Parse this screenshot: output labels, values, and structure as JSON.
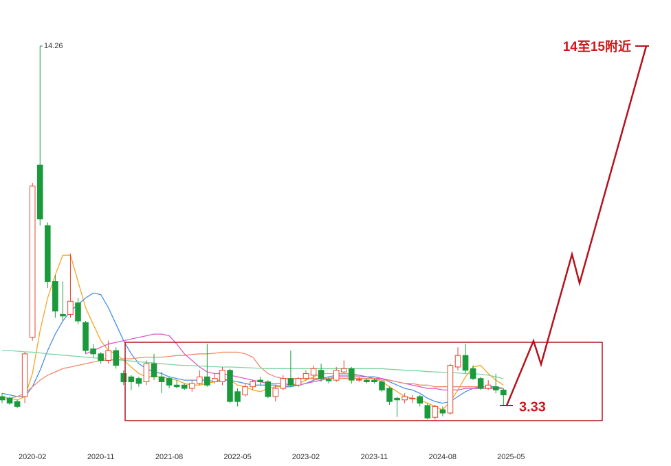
{
  "chart_data": {
    "type": "candlestick",
    "categories": [
      null,
      null,
      null,
      "2020-02",
      null,
      null,
      null,
      null,
      null,
      null,
      null,
      null,
      "2020-11",
      null,
      null,
      null,
      null,
      null,
      null,
      null,
      null,
      "2021-08",
      null,
      null,
      null,
      null,
      null,
      null,
      null,
      null,
      "2022-05",
      null,
      null,
      null,
      null,
      null,
      null,
      null,
      null,
      "2023-02",
      null,
      null,
      null,
      null,
      null,
      null,
      null,
      null,
      "2023-11",
      null,
      null,
      null,
      null,
      null,
      null,
      null,
      null,
      "2024-08",
      null,
      null,
      null,
      null,
      null,
      null,
      null,
      null,
      "2025-05"
    ],
    "open": [
      3.6,
      3.55,
      3.45,
      3.6,
      5.4,
      10.64,
      8.8,
      7.1,
      6.1,
      6.1,
      6.45,
      5.85,
      5.05,
      4.9,
      4.7,
      5.0,
      4.3,
      4.2,
      4.15,
      4.05,
      4.6,
      4.2,
      4.15,
      3.95,
      3.95,
      3.85,
      4.0,
      4.2,
      4.05,
      4.05,
      4.4,
      3.75,
      3.65,
      3.9,
      4.1,
      4.05,
      3.6,
      3.85,
      4.15,
      3.95,
      4.15,
      4.25,
      4.4,
      4.12,
      4.1,
      4.35,
      4.45,
      4.1,
      4.1,
      4.1,
      4.05,
      3.85,
      3.55,
      3.5,
      3.55,
      3.6,
      3.33,
      2.97,
      3.2,
      3.1,
      4.5,
      4.85,
      4.45,
      4.15,
      3.85,
      3.9,
      3.8
    ],
    "high": [
      3.7,
      3.6,
      3.5,
      4.95,
      10.1,
      14.26,
      8.9,
      7.3,
      7.1,
      7.95,
      6.6,
      5.9,
      5.2,
      4.95,
      5.3,
      5.1,
      4.4,
      4.25,
      4.2,
      4.7,
      4.9,
      4.35,
      4.2,
      4.1,
      4.0,
      4.1,
      4.4,
      5.2,
      4.3,
      4.5,
      4.45,
      3.85,
      4.0,
      4.1,
      4.2,
      4.1,
      3.95,
      4.25,
      5.0,
      4.2,
      4.4,
      4.55,
      4.6,
      4.2,
      4.5,
      4.7,
      4.5,
      4.2,
      4.15,
      4.15,
      4.1,
      3.9,
      3.6,
      3.7,
      3.65,
      3.65,
      3.4,
      3.35,
      3.3,
      4.6,
      5.1,
      5.2,
      4.55,
      4.2,
      4.1,
      4.3,
      3.85
    ],
    "low": [
      3.4,
      3.35,
      3.25,
      3.4,
      5.3,
      8.8,
      6.9,
      6.0,
      5.9,
      6.0,
      5.8,
      4.9,
      4.8,
      4.6,
      4.6,
      4.45,
      3.95,
      3.8,
      3.9,
      3.95,
      4.1,
      3.7,
      3.85,
      3.85,
      3.8,
      3.75,
      3.95,
      3.9,
      4.0,
      3.95,
      3.4,
      3.3,
      3.6,
      3.8,
      3.95,
      3.55,
      3.45,
      3.8,
      3.9,
      3.9,
      4.1,
      4.1,
      4.05,
      4.0,
      4.05,
      4.3,
      4.0,
      4.05,
      4.0,
      4.0,
      3.75,
      3.35,
      2.98,
      3.4,
      3.4,
      3.3,
      2.9,
      2.9,
      3.0,
      3.05,
      4.4,
      4.3,
      4.1,
      3.8,
      3.8,
      3.7,
      3.33
    ],
    "close": [
      3.5,
      3.4,
      3.3,
      4.9,
      10.0,
      9.0,
      7.1,
      6.2,
      6.05,
      6.5,
      5.9,
      5.0,
      4.9,
      4.7,
      5.0,
      4.55,
      4.05,
      4.05,
      4.0,
      4.6,
      4.2,
      4.05,
      3.95,
      3.9,
      3.85,
      4.0,
      4.2,
      3.95,
      4.15,
      4.4,
      3.45,
      3.45,
      3.9,
      4.05,
      4.05,
      3.6,
      3.85,
      4.15,
      3.95,
      4.15,
      4.3,
      4.45,
      4.15,
      4.08,
      4.4,
      4.45,
      4.1,
      4.12,
      4.05,
      4.05,
      3.8,
      3.45,
      3.5,
      3.6,
      3.55,
      3.4,
      2.95,
      3.3,
      3.1,
      4.55,
      4.85,
      4.4,
      4.15,
      3.85,
      3.95,
      3.8,
      3.65
    ],
    "up_color": "#e8442f",
    "down_color": "#1b9a3c",
    "series": [
      {
        "color": "#f5a623",
        "values": [
          3.6,
          3.55,
          3.5,
          3.6,
          4.3,
          5.6,
          6.6,
          7.3,
          7.9,
          7.9,
          7.1,
          6.3,
          5.8,
          5.3,
          5.0,
          4.9,
          4.7,
          4.5,
          4.3,
          4.2,
          4.2,
          4.2,
          4.15,
          4.1,
          4.0,
          3.95,
          3.95,
          4.0,
          4.05,
          4.15,
          4.1,
          3.95,
          3.9,
          3.8,
          3.75,
          3.85,
          3.9,
          3.9,
          3.95,
          4.0,
          4.1,
          4.2,
          4.3,
          4.3,
          4.3,
          4.3,
          4.3,
          4.25,
          4.2,
          4.15,
          4.05,
          3.9,
          3.75,
          3.6,
          3.55,
          3.5,
          3.4,
          3.3,
          3.2,
          3.45,
          3.8,
          4.2,
          4.5,
          4.55,
          4.3,
          4.1,
          3.95
        ]
      },
      {
        "color": "#4a90e2",
        "values": [
          3.7,
          3.65,
          3.6,
          3.6,
          3.9,
          4.4,
          5.0,
          5.5,
          5.9,
          6.2,
          6.4,
          6.6,
          6.75,
          6.7,
          6.3,
          5.8,
          5.3,
          4.9,
          4.6,
          4.45,
          4.35,
          4.3,
          4.2,
          4.15,
          4.1,
          4.1,
          4.1,
          4.1,
          4.05,
          4.1,
          4.1,
          4.05,
          4.0,
          3.95,
          3.95,
          3.95,
          3.95,
          3.9,
          3.9,
          3.95,
          4.0,
          4.1,
          4.15,
          4.2,
          4.25,
          4.25,
          4.25,
          4.25,
          4.2,
          4.2,
          4.15,
          4.05,
          3.95,
          3.85,
          3.8,
          3.7,
          3.55,
          3.45,
          3.4,
          3.45,
          3.6,
          3.75,
          3.85,
          3.9,
          3.9,
          3.9,
          3.85
        ]
      },
      {
        "color": "#e056c8",
        "values": [
          null,
          null,
          null,
          null,
          null,
          null,
          null,
          null,
          null,
          null,
          null,
          4.9,
          5.0,
          5.1,
          5.2,
          5.25,
          5.3,
          5.35,
          5.4,
          5.45,
          5.5,
          5.5,
          5.45,
          5.2,
          4.9,
          4.7,
          4.5,
          4.35,
          4.3,
          4.3,
          4.25,
          4.2,
          4.15,
          4.1,
          4.05,
          4.0,
          4.0,
          4.0,
          3.95,
          3.95,
          4.0,
          4.05,
          4.1,
          4.15,
          4.2,
          4.2,
          4.2,
          4.2,
          4.2,
          4.15,
          4.15,
          4.1,
          4.05,
          4.0,
          3.95,
          3.9,
          3.85,
          3.85,
          3.8,
          3.8,
          3.8,
          3.85,
          3.85,
          3.85,
          3.85,
          3.85,
          3.85
        ]
      },
      {
        "color": "#f08a6a",
        "values": [
          3.5,
          3.55,
          3.6,
          3.7,
          3.9,
          4.1,
          4.25,
          4.35,
          4.45,
          4.5,
          4.55,
          4.6,
          4.65,
          4.7,
          4.7,
          4.72,
          4.75,
          4.75,
          4.78,
          4.8,
          4.8,
          4.8,
          4.82,
          4.85,
          4.85,
          4.88,
          4.9,
          4.9,
          4.92,
          4.95,
          4.95,
          4.95,
          4.9,
          4.8,
          4.5,
          4.3,
          4.2,
          4.15,
          4.15,
          4.15,
          4.15,
          4.15,
          4.15,
          4.15,
          4.15,
          4.15,
          4.15,
          4.15,
          4.15,
          4.15,
          4.1,
          4.1,
          4.05,
          4.0,
          4.0,
          3.95,
          3.95,
          3.9,
          3.9,
          3.9,
          3.9,
          3.9,
          3.9,
          3.9,
          3.9,
          3.85,
          3.85
        ]
      },
      {
        "color": "#7fd3a0",
        "values": [
          5.0,
          5.0,
          4.98,
          4.96,
          4.95,
          4.93,
          4.9,
          4.88,
          4.86,
          4.84,
          4.82,
          4.8,
          4.78,
          4.76,
          4.74,
          4.72,
          4.7,
          4.68,
          4.66,
          4.64,
          4.62,
          4.6,
          4.58,
          4.56,
          4.55,
          4.54,
          4.53,
          4.52,
          4.51,
          4.5,
          4.5,
          4.49,
          4.48,
          4.47,
          4.46,
          4.45,
          4.45,
          4.45,
          4.45,
          4.45,
          4.45,
          4.45,
          4.45,
          4.45,
          4.45,
          4.45,
          4.45,
          4.45,
          4.45,
          4.45,
          4.45,
          4.43,
          4.42,
          4.4,
          4.4,
          4.38,
          4.36,
          4.35,
          4.34,
          4.33,
          4.32,
          4.3,
          4.3,
          4.28,
          4.25,
          4.2,
          4.15
        ]
      }
    ],
    "ylim": [
      2.2,
      15.66
    ],
    "annotations": [
      "14.26",
      "3.33",
      "14至15附近"
    ]
  }
}
